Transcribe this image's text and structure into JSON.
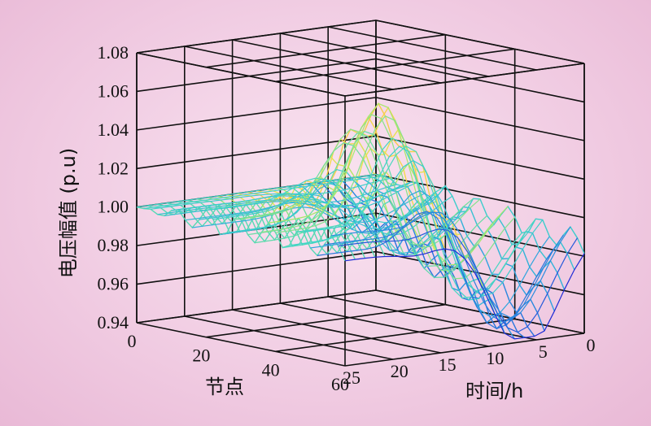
{
  "chart_data": {
    "type": "3d-surface",
    "title": "",
    "zlabel": "电压幅值 (p.u)",
    "xlabel": "节点",
    "ylabel": "时间/h",
    "z_ticks": [
      "0.94",
      "0.96",
      "0.98",
      "1.00",
      "1.02",
      "1.04",
      "1.06",
      "1.08"
    ],
    "x_ticks": [
      "0",
      "20",
      "40",
      "60"
    ],
    "y_ticks": [
      "25",
      "20",
      "15",
      "10",
      "5",
      "0"
    ],
    "zlim": [
      0.94,
      1.08
    ],
    "xlim": [
      0,
      60
    ],
    "ylim": [
      0,
      25
    ],
    "grid": true,
    "colormap": [
      "#1f2bd6",
      "#2d9fe0",
      "#3fd6c8",
      "#a8e86a",
      "#f4e04a",
      "#f6b24d"
    ]
  }
}
